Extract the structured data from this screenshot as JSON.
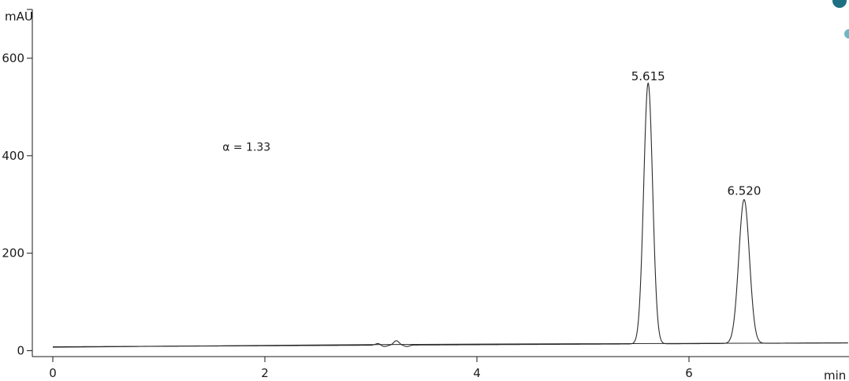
{
  "chart_data": {
    "type": "line",
    "title": "",
    "xlabel": "",
    "ylabel": "",
    "y_unit_label": "mAU",
    "x_unit_label": "min",
    "xlim": [
      0,
      7.5
    ],
    "ylim": [
      -15,
      700
    ],
    "x_ticks": [
      0,
      2,
      4,
      6
    ],
    "x_tick_labels": [
      "0",
      "2",
      "4",
      "6"
    ],
    "y_ticks": [
      0,
      200,
      400,
      600
    ],
    "y_tick_labels": [
      "0",
      "200",
      "400",
      "600"
    ],
    "grid": false,
    "annotations": [
      {
        "text": "5.615",
        "x": 5.615,
        "y": 555
      },
      {
        "text": "6.520",
        "x": 6.52,
        "y": 320
      },
      {
        "text": "α = 1.33",
        "x": 1.6,
        "y": 410
      }
    ],
    "series": [
      {
        "type": "chromatogram",
        "baseline": {
          "x0": 0,
          "y0": 8,
          "x1": 7.5,
          "y1": 16
        },
        "peaks": [
          {
            "rt": 3.07,
            "height": 4,
            "sigma": 0.025
          },
          {
            "rt": 3.12,
            "height": -3,
            "sigma": 0.03
          },
          {
            "rt": 3.24,
            "height": 9,
            "sigma": 0.025
          },
          {
            "rt": 3.34,
            "height": -3,
            "sigma": 0.025
          },
          {
            "rt": 5.615,
            "height": 535,
            "sigma": 0.042
          },
          {
            "rt": 6.52,
            "height": 295,
            "sigma": 0.05
          }
        ]
      },
      {
        "type": "reference-baseline",
        "x": [
          0,
          1,
          2,
          3,
          4,
          5,
          6,
          7,
          7.5
        ],
        "y": [
          7,
          9,
          11,
          12.5,
          13.5,
          14.3,
          15,
          15.6,
          16
        ]
      }
    ]
  }
}
